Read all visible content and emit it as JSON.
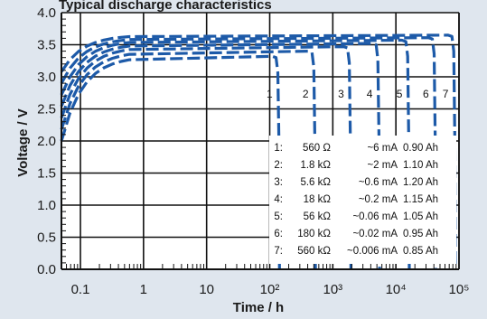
{
  "chart_data": {
    "type": "line",
    "title": "Typical discharge characteristics",
    "xlabel": "Time / h",
    "ylabel": "Voltage / V",
    "xscale": "log",
    "xlim": [
      0.05,
      100000
    ],
    "ylim": [
      0.0,
      4.0
    ],
    "x_tick_labels": [
      "0.1",
      "1",
      "10",
      "10²",
      "10³",
      "10⁴",
      "10⁵"
    ],
    "x_tick_values": [
      0.1,
      1,
      10,
      100,
      1000,
      10000,
      100000
    ],
    "y_tick_labels": [
      "0.0",
      "0.5",
      "1.0",
      "1.5",
      "2.0",
      "2.5",
      "3.0",
      "3.5",
      "4.0"
    ],
    "y_tick_values": [
      0,
      0.5,
      1.0,
      1.5,
      2.0,
      2.5,
      3.0,
      3.5,
      4.0
    ],
    "grid": true,
    "legend_position": "bottom-right",
    "line_color": "#1d5aa8",
    "series": [
      {
        "name": "1",
        "load": "560 Ω",
        "current": "~6 mA",
        "capacity": "0.90 Ah",
        "plateau_v": 3.32,
        "end_time_h": 140
      },
      {
        "name": "2",
        "load": "1.8 kΩ",
        "current": "~2 mA",
        "capacity": "1.10 Ah",
        "plateau_v": 3.4,
        "end_time_h": 520
      },
      {
        "name": "3",
        "load": "5.6 kΩ",
        "current": "~0.6 mA",
        "capacity": "1.20 Ah",
        "plateau_v": 3.47,
        "end_time_h": 1900
      },
      {
        "name": "4",
        "load": "18 kΩ",
        "current": "~0.2 mA",
        "capacity": "1.15 Ah",
        "plateau_v": 3.52,
        "end_time_h": 5400
      },
      {
        "name": "5",
        "load": "56 kΩ",
        "current": "~0.06 mA",
        "capacity": "1.05 Ah",
        "plateau_v": 3.57,
        "end_time_h": 16000
      },
      {
        "name": "6",
        "load": "180 kΩ",
        "current": "~0.02 mA",
        "capacity": "0.95 Ah",
        "plateau_v": 3.61,
        "end_time_h": 42000
      },
      {
        "name": "7",
        "load": "560 kΩ",
        "current": "~0.006 mA",
        "capacity": "0.85 Ah",
        "plateau_v": 3.65,
        "end_time_h": 86000
      }
    ]
  }
}
